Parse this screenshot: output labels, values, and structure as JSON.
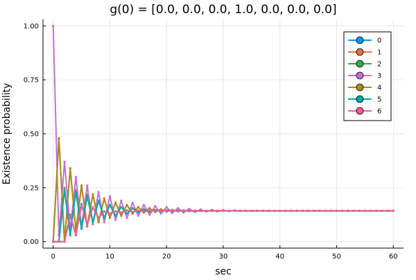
{
  "chart_data": {
    "type": "line",
    "title": "g(0) = [0.0, 0.0, 0.0, 1.0, 0.0, 0.0, 0.0]",
    "xlabel": "sec",
    "ylabel": "Existence probability",
    "xlim": [
      -1.8,
      61.8
    ],
    "ylim": [
      -0.03,
      1.03
    ],
    "xticks": [
      0,
      10,
      20,
      30,
      40,
      50,
      60
    ],
    "xtick_labels": [
      "0",
      "10",
      "20",
      "30",
      "40",
      "50",
      "60"
    ],
    "yticks": [
      0.0,
      0.25,
      0.5,
      0.75,
      1.0
    ],
    "ytick_labels": [
      "0.00",
      "0.25",
      "0.50",
      "0.75",
      "1.00"
    ],
    "grid": true,
    "legend_position": "top-right",
    "x": [
      0,
      1,
      2,
      3,
      4,
      5,
      6,
      7,
      8,
      9,
      10,
      11,
      12,
      13,
      14,
      15,
      16,
      17,
      18,
      19,
      20,
      21,
      22,
      23,
      24,
      25,
      26,
      27,
      28,
      29,
      30,
      31,
      32,
      33,
      34,
      35,
      36,
      37,
      38,
      39,
      40,
      41,
      42,
      43,
      44,
      45,
      46,
      47,
      48,
      49,
      50,
      51,
      52,
      53,
      54,
      55,
      56,
      57,
      58,
      59,
      60
    ],
    "series": [
      {
        "name": "0",
        "color": "#009AFA",
        "values": [
          0,
          0,
          0,
          0.125,
          0.03,
          0.175,
          0.08,
          0.16,
          0.11,
          0.14,
          0.13,
          0.14,
          0.135,
          0.145,
          0.138,
          0.144,
          0.14,
          0.143,
          0.142,
          0.143,
          0.142,
          0.143,
          0.142,
          0.143,
          0.142,
          0.143,
          0.142,
          0.143,
          0.142,
          0.143,
          0.143,
          0.143,
          0.143,
          0.143,
          0.143,
          0.143,
          0.143,
          0.143,
          0.143,
          0.143,
          0.143,
          0.143,
          0.143,
          0.143,
          0.143,
          0.143,
          0.143,
          0.143,
          0.143,
          0.143,
          0.143,
          0.143,
          0.143,
          0.143,
          0.143,
          0.143,
          0.143,
          0.143,
          0.143,
          0.143,
          0.143
        ]
      },
      {
        "name": "1",
        "color": "#E36F47",
        "values": [
          0,
          0,
          0.25,
          0.03,
          0.24,
          0.06,
          0.22,
          0.09,
          0.19,
          0.11,
          0.17,
          0.12,
          0.16,
          0.13,
          0.155,
          0.135,
          0.15,
          0.138,
          0.147,
          0.14,
          0.145,
          0.141,
          0.144,
          0.142,
          0.143,
          0.142,
          0.143,
          0.143,
          0.143,
          0.143,
          0.143,
          0.143,
          0.143,
          0.143,
          0.143,
          0.143,
          0.143,
          0.143,
          0.143,
          0.143,
          0.143,
          0.143,
          0.143,
          0.143,
          0.143,
          0.143,
          0.143,
          0.143,
          0.143,
          0.143,
          0.143,
          0.143,
          0.143,
          0.143,
          0.143,
          0.143,
          0.143,
          0.143,
          0.143,
          0.143,
          0.143
        ]
      },
      {
        "name": "2",
        "color": "#3EA44E",
        "values": [
          0,
          0.48,
          0,
          0.34,
          0.05,
          0.26,
          0.07,
          0.22,
          0.09,
          0.2,
          0.11,
          0.18,
          0.12,
          0.17,
          0.13,
          0.16,
          0.135,
          0.155,
          0.137,
          0.15,
          0.139,
          0.147,
          0.14,
          0.145,
          0.141,
          0.144,
          0.142,
          0.143,
          0.142,
          0.143,
          0.143,
          0.143,
          0.143,
          0.143,
          0.143,
          0.143,
          0.143,
          0.143,
          0.143,
          0.143,
          0.143,
          0.143,
          0.143,
          0.143,
          0.143,
          0.143,
          0.143,
          0.143,
          0.143,
          0.143,
          0.143,
          0.143,
          0.143,
          0.143,
          0.143,
          0.143,
          0.143,
          0.143,
          0.143,
          0.143,
          0.143
        ]
      },
      {
        "name": "3",
        "color": "#C271D2",
        "values": [
          1.0,
          0.03,
          0.37,
          0.05,
          0.3,
          0.07,
          0.26,
          0.08,
          0.23,
          0.09,
          0.21,
          0.1,
          0.19,
          0.11,
          0.18,
          0.12,
          0.17,
          0.125,
          0.165,
          0.13,
          0.16,
          0.133,
          0.155,
          0.135,
          0.152,
          0.137,
          0.149,
          0.139,
          0.147,
          0.14,
          0.146,
          0.141,
          0.145,
          0.142,
          0.144,
          0.142,
          0.143,
          0.143,
          0.143,
          0.143,
          0.143,
          0.143,
          0.143,
          0.143,
          0.143,
          0.143,
          0.143,
          0.143,
          0.143,
          0.143,
          0.143,
          0.143,
          0.143,
          0.143,
          0.143,
          0.143,
          0.143,
          0.143,
          0.143,
          0.143,
          0.143
        ]
      },
      {
        "name": "4",
        "color": "#AC8D18",
        "values": [
          0,
          0.48,
          0,
          0.34,
          0.05,
          0.26,
          0.07,
          0.22,
          0.09,
          0.2,
          0.11,
          0.18,
          0.12,
          0.17,
          0.13,
          0.16,
          0.135,
          0.155,
          0.137,
          0.15,
          0.139,
          0.147,
          0.14,
          0.145,
          0.141,
          0.144,
          0.142,
          0.143,
          0.142,
          0.143,
          0.143,
          0.143,
          0.143,
          0.143,
          0.143,
          0.143,
          0.143,
          0.143,
          0.143,
          0.143,
          0.143,
          0.143,
          0.143,
          0.143,
          0.143,
          0.143,
          0.143,
          0.143,
          0.143,
          0.143,
          0.143,
          0.143,
          0.143,
          0.143,
          0.143,
          0.143,
          0.143,
          0.143,
          0.143,
          0.143,
          0.143
        ]
      },
      {
        "name": "5",
        "color": "#00A9AD",
        "values": [
          0,
          0,
          0.24,
          0.03,
          0.23,
          0.06,
          0.21,
          0.09,
          0.19,
          0.11,
          0.17,
          0.12,
          0.16,
          0.13,
          0.155,
          0.135,
          0.15,
          0.138,
          0.147,
          0.14,
          0.145,
          0.141,
          0.144,
          0.142,
          0.143,
          0.142,
          0.143,
          0.143,
          0.143,
          0.143,
          0.143,
          0.143,
          0.143,
          0.143,
          0.143,
          0.143,
          0.143,
          0.143,
          0.143,
          0.143,
          0.143,
          0.143,
          0.143,
          0.143,
          0.143,
          0.143,
          0.143,
          0.143,
          0.143,
          0.143,
          0.143,
          0.143,
          0.143,
          0.143,
          0.143,
          0.143,
          0.143,
          0.143,
          0.143,
          0.143,
          0.143
        ]
      },
      {
        "name": "6",
        "color": "#ED5E93",
        "values": [
          0,
          0,
          0,
          0.12,
          0.03,
          0.17,
          0.08,
          0.16,
          0.11,
          0.14,
          0.13,
          0.14,
          0.135,
          0.145,
          0.138,
          0.144,
          0.14,
          0.143,
          0.142,
          0.143,
          0.142,
          0.143,
          0.142,
          0.143,
          0.142,
          0.143,
          0.142,
          0.143,
          0.142,
          0.143,
          0.143,
          0.143,
          0.143,
          0.143,
          0.143,
          0.143,
          0.143,
          0.143,
          0.143,
          0.143,
          0.143,
          0.143,
          0.143,
          0.143,
          0.143,
          0.143,
          0.143,
          0.143,
          0.143,
          0.143,
          0.143,
          0.143,
          0.143,
          0.143,
          0.143,
          0.143,
          0.143,
          0.143,
          0.143,
          0.143,
          0.143
        ]
      }
    ]
  }
}
